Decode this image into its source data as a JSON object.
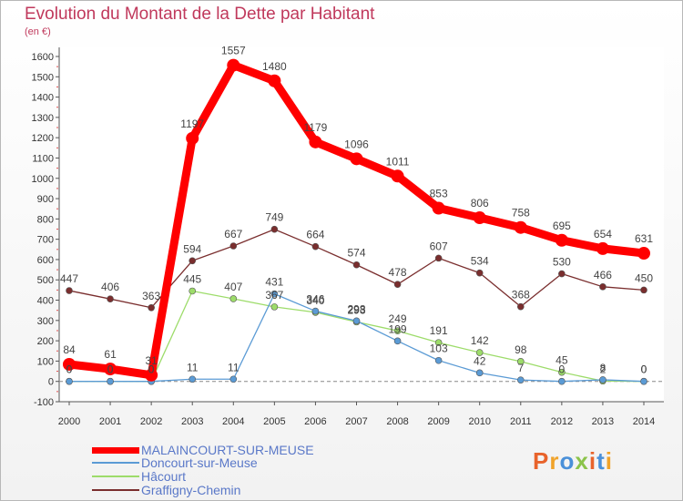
{
  "header": {
    "title": "Evolution du Montant de la Dette par Habitant",
    "subtitle": "(en €)"
  },
  "logo": {
    "text": "Proxiti",
    "colors": [
      "#e8632b",
      "#f0a32a",
      "#4a90d9",
      "#8bc34a",
      "#e8632b",
      "#4a90d9",
      "#f0a32a"
    ]
  },
  "chart_data": {
    "type": "line",
    "title": "Evolution du Montant de la Dette par Habitant",
    "subtitle": "(en €)",
    "x": [
      "2000",
      "2001",
      "2002",
      "2003",
      "2004",
      "2005",
      "2006",
      "2007",
      "2008",
      "2009",
      "2010",
      "2011",
      "2012",
      "2013",
      "2014"
    ],
    "ylim": [
      -100,
      1600
    ],
    "yticks": [
      -100,
      0,
      100,
      200,
      300,
      400,
      500,
      600,
      700,
      800,
      900,
      1000,
      1100,
      1200,
      1300,
      1400,
      1500,
      1600
    ],
    "grid": false,
    "legend_position": "bottom-left",
    "series": [
      {
        "name": "MALAINCOURT-SUR-MEUSE",
        "color": "#ff0000",
        "values": [
          84,
          61,
          31,
          1197,
          1557,
          1480,
          1179,
          1096,
          1011,
          853,
          806,
          758,
          695,
          654,
          631
        ],
        "labels": [
          "84",
          "61",
          "31",
          "1197",
          "1557",
          "1480",
          "1179",
          "1096",
          "1011",
          "853",
          "806",
          "758",
          "695",
          "654",
          "631"
        ]
      },
      {
        "name": "Doncourt-sur-Meuse",
        "color": "#5b9bd5",
        "values": [
          0,
          0,
          0,
          11,
          11,
          431,
          346,
          298,
          199,
          103,
          42,
          7,
          0,
          8,
          0
        ],
        "labels": [
          "0",
          "0",
          "0",
          "11",
          "11",
          "431",
          "346",
          "298",
          "199",
          "103",
          "42",
          "7",
          "0",
          "8",
          "0"
        ]
      },
      {
        "name": "Hâcourt",
        "color": "#9ddc6a",
        "values": [
          0,
          0,
          0,
          445,
          407,
          367,
          340,
          293,
          249,
          191,
          142,
          98,
          45,
          2,
          0
        ],
        "labels": [
          "0",
          "0",
          "0",
          "445",
          "407",
          "367",
          "340",
          "293",
          "249",
          "191",
          "142",
          "98",
          "45",
          "2",
          "0"
        ]
      },
      {
        "name": "Graffigny-Chemin",
        "color": "#7a2e2e",
        "values": [
          447,
          406,
          363,
          594,
          667,
          749,
          664,
          574,
          478,
          607,
          534,
          368,
          530,
          466,
          450
        ],
        "labels": [
          "447",
          "406",
          "363",
          "594",
          "667",
          "749",
          "664",
          "574",
          "478",
          "607",
          "534",
          "368",
          "530",
          "466",
          "450"
        ]
      }
    ]
  }
}
